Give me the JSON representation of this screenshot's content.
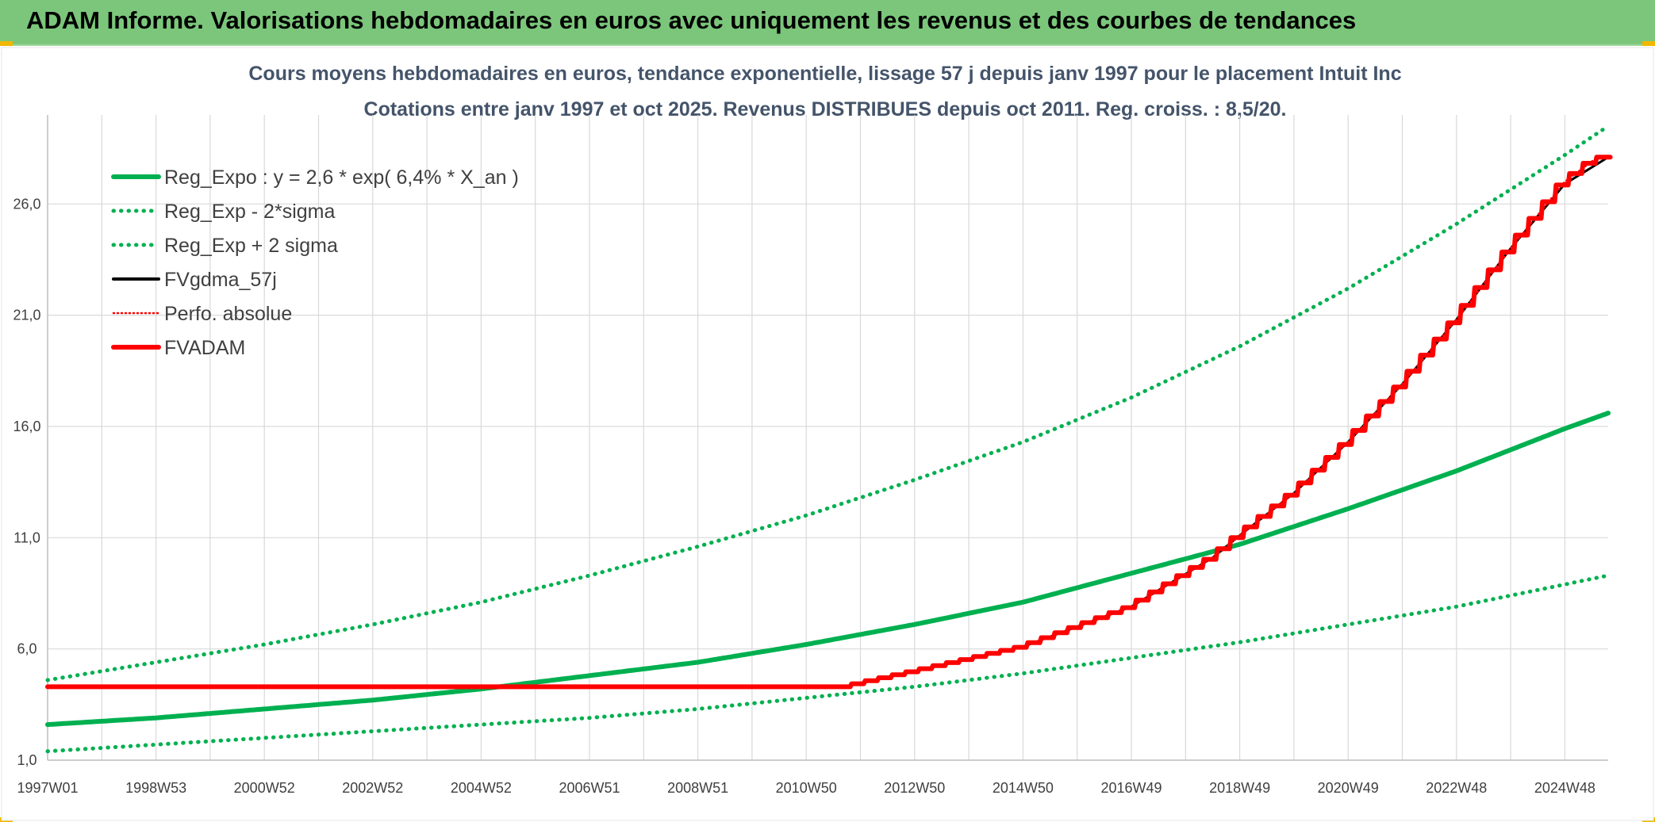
{
  "banner": {
    "title": "ADAM Informe. Valorisations hebdomadaires en euros avec uniquement les revenus et des courbes de tendances"
  },
  "colors": {
    "banner": "#7bc67b",
    "green": "#00b050",
    "red": "#ff0000",
    "black": "#000000",
    "title": "#44546a",
    "grid": "#d9d9d9"
  },
  "chart_data": {
    "type": "line",
    "title": "Cours moyens hebdomadaires en euros, tendance exponentielle, lissage 57 j depuis janv 1997 pour le placement Intuit Inc",
    "subtitle": "Cotations entre janv 1997 et oct 2025. Revenus DISTRIBUES depuis oct 2011. Reg. croiss. : 8,5/20.",
    "xlabel": "",
    "ylabel": "",
    "x_range": [
      1997.0,
      2025.8
    ],
    "ylim": [
      1,
      30
    ],
    "y_ticks": [
      "1,0",
      "6,0",
      "11,0",
      "16,0",
      "21,0",
      "26,0"
    ],
    "y_tick_values": [
      1,
      6,
      11,
      16,
      21,
      26
    ],
    "x_ticks": [
      "1997W01",
      "1998W53",
      "2000W52",
      "2002W52",
      "2004W52",
      "2006W51",
      "2008W51",
      "2010W50",
      "2012W50",
      "2014W50",
      "2016W49",
      "2018W49",
      "2020W49",
      "2022W48",
      "2024W48"
    ],
    "x_tick_values": [
      1997.0,
      1999.0,
      2001.0,
      2003.0,
      2005.0,
      2007.0,
      2009.0,
      2011.0,
      2013.0,
      2015.0,
      2017.0,
      2019.0,
      2021.0,
      2023.0,
      2025.0
    ],
    "grid": true,
    "legend_position": "top-left",
    "series": [
      {
        "name": "Reg_Expo : y = 2,6 * exp( 6,4% *  X_an )",
        "style": "solid-thick",
        "color": "#00b050",
        "x": [
          1997.0,
          1999.0,
          2001.0,
          2003.0,
          2005.0,
          2007.0,
          2009.0,
          2011.0,
          2013.0,
          2015.0,
          2017.0,
          2019.0,
          2021.0,
          2023.0,
          2025.0,
          2025.8
        ],
        "values": [
          2.6,
          2.9,
          3.3,
          3.7,
          4.2,
          4.8,
          5.4,
          6.2,
          7.1,
          8.1,
          9.4,
          10.7,
          12.3,
          14.0,
          15.9,
          16.6
        ]
      },
      {
        "name": "Reg_Exp - 2*sigma",
        "style": "dotted",
        "color": "#00b050",
        "x": [
          1997.0,
          1999.0,
          2001.0,
          2003.0,
          2005.0,
          2007.0,
          2009.0,
          2011.0,
          2013.0,
          2015.0,
          2017.0,
          2019.0,
          2021.0,
          2023.0,
          2025.0,
          2025.8
        ],
        "values": [
          1.4,
          1.7,
          2.0,
          2.3,
          2.6,
          2.9,
          3.3,
          3.8,
          4.3,
          4.9,
          5.6,
          6.3,
          7.1,
          7.9,
          8.9,
          9.3
        ]
      },
      {
        "name": "Reg_Exp + 2 sigma",
        "style": "dotted",
        "color": "#00b050",
        "x": [
          1997.0,
          1999.0,
          2001.0,
          2003.0,
          2005.0,
          2007.0,
          2009.0,
          2011.0,
          2013.0,
          2015.0,
          2017.0,
          2019.0,
          2021.0,
          2023.0,
          2025.0,
          2025.8
        ],
        "values": [
          4.6,
          5.4,
          6.2,
          7.1,
          8.1,
          9.3,
          10.6,
          12.0,
          13.6,
          15.3,
          17.3,
          19.6,
          22.2,
          25.1,
          28.2,
          29.5
        ]
      },
      {
        "name": "FVgdma_57j",
        "style": "solid",
        "color": "#000000",
        "x": [
          1997.0,
          2011.7,
          2013.0,
          2015.0,
          2017.0,
          2018.5,
          2019.0,
          2020.0,
          2021.0,
          2022.0,
          2023.0,
          2024.0,
          2025.0,
          2025.8
        ],
        "values": [
          4.3,
          4.3,
          5.0,
          6.1,
          7.9,
          10.1,
          11.1,
          13.0,
          15.3,
          17.9,
          20.8,
          24.0,
          26.9,
          28.1
        ]
      },
      {
        "name": "Perfo. absolue",
        "style": "dotted",
        "color": "#ff0000",
        "x": [
          1997.0,
          2011.7,
          2013.0,
          2015.0,
          2017.0,
          2018.5,
          2019.0,
          2020.0,
          2021.0,
          2022.0,
          2023.0,
          2024.0,
          2025.0,
          2025.6
        ],
        "values": [
          4.3,
          4.3,
          5.0,
          6.1,
          7.9,
          10.1,
          11.1,
          13.0,
          15.3,
          17.9,
          20.8,
          24.0,
          27.0,
          28.1
        ]
      },
      {
        "name": "FVADAM",
        "style": "solid-thick-stepped",
        "color": "#ff0000",
        "x": [
          1997.0,
          2011.7,
          2013.0,
          2015.0,
          2017.0,
          2018.5,
          2019.0,
          2020.0,
          2021.0,
          2022.0,
          2023.0,
          2024.0,
          2025.0,
          2025.6,
          2025.8
        ],
        "values": [
          4.3,
          4.3,
          5.0,
          6.1,
          7.9,
          10.1,
          11.1,
          13.0,
          15.3,
          17.9,
          20.8,
          24.0,
          27.0,
          28.1,
          28.1
        ]
      }
    ]
  }
}
